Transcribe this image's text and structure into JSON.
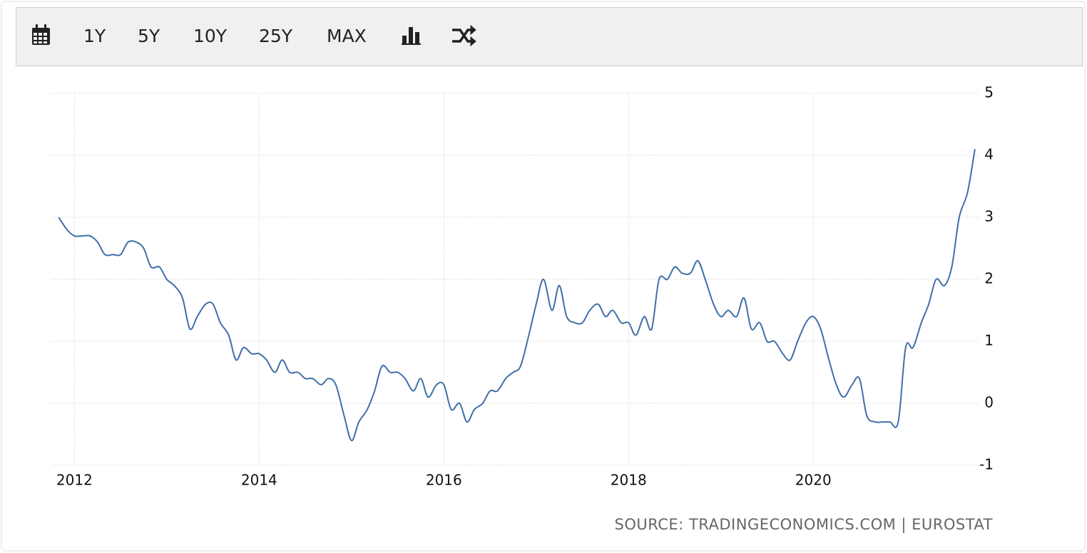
{
  "toolbar": {
    "buttons": [
      "1Y",
      "5Y",
      "10Y",
      "25Y",
      "MAX"
    ]
  },
  "chart_data": {
    "type": "line",
    "source": "SOURCE: TRADINGECONOMICS.COM | EUROSTAT",
    "x": [
      2011.83,
      2011.92,
      2012.0,
      2012.08,
      2012.17,
      2012.25,
      2012.33,
      2012.42,
      2012.5,
      2012.58,
      2012.67,
      2012.75,
      2012.83,
      2012.92,
      2013.0,
      2013.08,
      2013.17,
      2013.25,
      2013.33,
      2013.42,
      2013.5,
      2013.58,
      2013.67,
      2013.75,
      2013.83,
      2013.92,
      2014.0,
      2014.08,
      2014.17,
      2014.25,
      2014.33,
      2014.42,
      2014.5,
      2014.58,
      2014.67,
      2014.75,
      2014.83,
      2014.92,
      2015.0,
      2015.08,
      2015.17,
      2015.25,
      2015.33,
      2015.42,
      2015.5,
      2015.58,
      2015.67,
      2015.75,
      2015.83,
      2015.92,
      2016.0,
      2016.08,
      2016.17,
      2016.25,
      2016.33,
      2016.42,
      2016.5,
      2016.58,
      2016.67,
      2016.75,
      2016.83,
      2016.92,
      2017.0,
      2017.08,
      2017.17,
      2017.25,
      2017.33,
      2017.42,
      2017.5,
      2017.58,
      2017.67,
      2017.75,
      2017.83,
      2017.92,
      2018.0,
      2018.08,
      2018.17,
      2018.25,
      2018.33,
      2018.42,
      2018.5,
      2018.58,
      2018.67,
      2018.75,
      2018.83,
      2018.92,
      2019.0,
      2019.08,
      2019.17,
      2019.25,
      2019.33,
      2019.42,
      2019.5,
      2019.58,
      2019.67,
      2019.75,
      2019.83,
      2019.92,
      2020.0,
      2020.08,
      2020.17,
      2020.25,
      2020.33,
      2020.42,
      2020.5,
      2020.58,
      2020.67,
      2020.75,
      2020.83,
      2020.92,
      2021.0,
      2021.08,
      2021.17,
      2021.25,
      2021.33,
      2021.42,
      2021.5,
      2021.58,
      2021.67,
      2021.75
    ],
    "series": [
      {
        "color": "#3f6fa8",
        "values": [
          3.0,
          2.8,
          2.7,
          2.7,
          2.7,
          2.6,
          2.4,
          2.4,
          2.4,
          2.6,
          2.6,
          2.5,
          2.2,
          2.2,
          2.0,
          1.9,
          1.7,
          1.2,
          1.4,
          1.6,
          1.6,
          1.3,
          1.1,
          0.7,
          0.9,
          0.8,
          0.8,
          0.7,
          0.5,
          0.7,
          0.5,
          0.5,
          0.4,
          0.4,
          0.3,
          0.4,
          0.3,
          -0.2,
          -0.6,
          -0.3,
          -0.1,
          0.2,
          0.6,
          0.5,
          0.5,
          0.4,
          0.2,
          0.4,
          0.1,
          0.3,
          0.3,
          -0.1,
          0.0,
          -0.3,
          -0.1,
          0.0,
          0.2,
          0.2,
          0.4,
          0.5,
          0.6,
          1.1,
          1.6,
          2.0,
          1.5,
          1.9,
          1.4,
          1.3,
          1.3,
          1.5,
          1.6,
          1.4,
          1.5,
          1.3,
          1.3,
          1.1,
          1.4,
          1.2,
          2.0,
          2.0,
          2.2,
          2.1,
          2.1,
          2.3,
          2.0,
          1.6,
          1.4,
          1.5,
          1.4,
          1.7,
          1.2,
          1.3,
          1.0,
          1.0,
          0.8,
          0.7,
          1.0,
          1.3,
          1.4,
          1.2,
          0.7,
          0.3,
          0.1,
          0.3,
          0.4,
          -0.2,
          -0.3,
          -0.3,
          -0.3,
          -0.3,
          0.9,
          0.9,
          1.3,
          1.6,
          2.0,
          1.9,
          2.2,
          3.0,
          3.4,
          4.1
        ]
      }
    ],
    "xlim": [
      2011.75,
      2021.79
    ],
    "xticks": [
      2012,
      2014,
      2016,
      2018,
      2020
    ],
    "ylim": [
      -1,
      5
    ],
    "yticks": [
      -1,
      0,
      1,
      2,
      3,
      4,
      5
    ],
    "grid": true
  }
}
